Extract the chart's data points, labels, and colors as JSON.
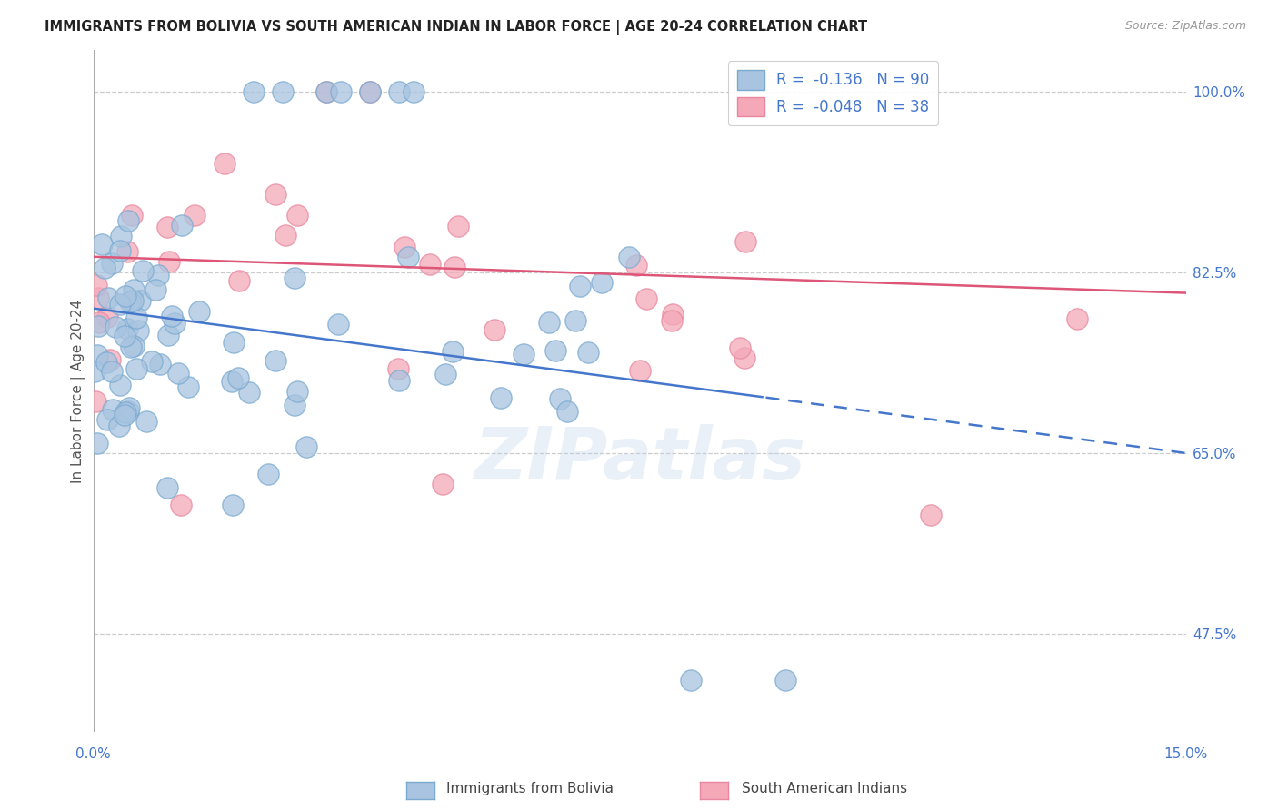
{
  "title": "IMMIGRANTS FROM BOLIVIA VS SOUTH AMERICAN INDIAN IN LABOR FORCE | AGE 20-24 CORRELATION CHART",
  "source": "Source: ZipAtlas.com",
  "ylabel": "In Labor Force | Age 20-24",
  "yticks": [
    47.5,
    65.0,
    82.5,
    100.0
  ],
  "xmin": 0.0,
  "xmax": 0.15,
  "ymin": 38.0,
  "ymax": 104.0,
  "blue_color": "#a8c4e0",
  "pink_color": "#f4a8b8",
  "blue_edge_color": "#7aaad0",
  "pink_edge_color": "#e888a0",
  "blue_line_color": "#4477cc",
  "pink_line_color": "#dd5577",
  "legend_blue_label": "R =  -0.136   N = 90",
  "legend_pink_label": "R =  -0.048   N = 38",
  "blue_series_label": "Immigrants from Bolivia",
  "pink_series_label": "South American Indians",
  "watermark": "ZIPatlas",
  "blue_line_x0": 0.0,
  "blue_line_y0": 79.0,
  "blue_line_x1": 0.15,
  "blue_line_y1": 65.0,
  "blue_line_solid_end": 0.092,
  "pink_line_x0": 0.0,
  "pink_line_y0": 84.0,
  "pink_line_x1": 0.15,
  "pink_line_y1": 80.5
}
